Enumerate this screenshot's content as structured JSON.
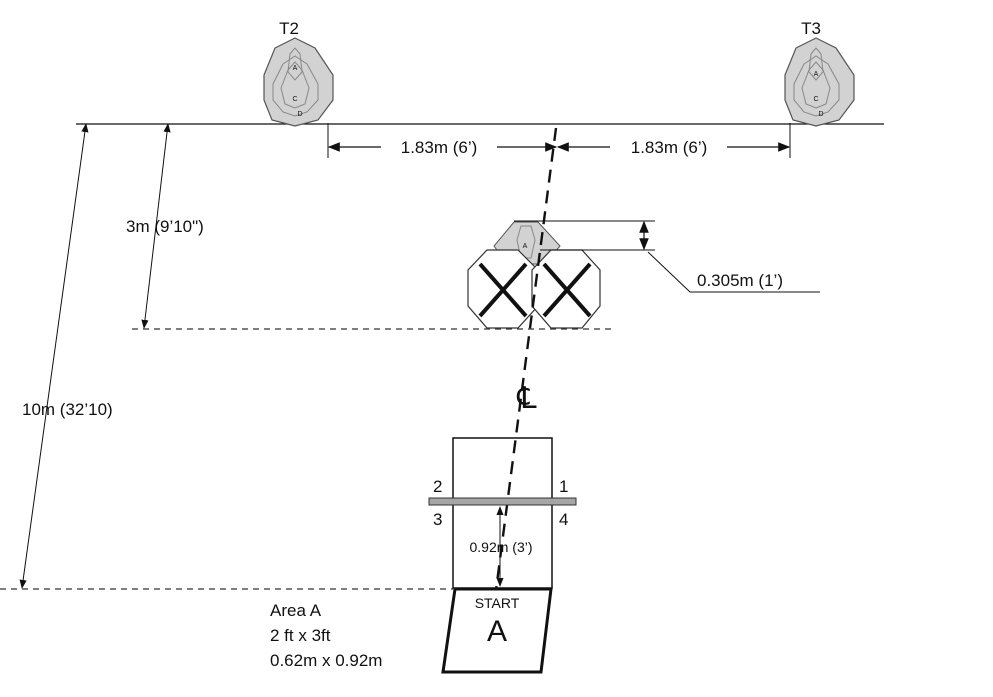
{
  "targets": {
    "t2": "T2",
    "t3": "T3",
    "zone_a": "A",
    "zone_c": "C",
    "zone_d": "D"
  },
  "dimensions": {
    "left_spacing": "1.83m (6’)",
    "right_spacing": "1.83m (6’)",
    "no_shoot_offset": "3m (9’10\")",
    "total_distance": "10m (32’10)",
    "overlap_height": "0.305m (1’)",
    "fault_line_gap": "0.92m (3’)"
  },
  "centerline_symbol": "℄",
  "shooting_box": {
    "corner_1": "1",
    "corner_2": "2",
    "corner_3": "3",
    "corner_4": "4"
  },
  "start_area": {
    "start_label": "START",
    "area_letter": "A",
    "name": "Area A",
    "size_imperial": "2 ft x 3ft",
    "size_metric": "0.62m x 0.92m"
  },
  "colors": {
    "line": "#111111",
    "target_fill": "#d2d2d2",
    "no_shoot_fill": "#ffffff",
    "fault_line": "#a6a6a6"
  }
}
